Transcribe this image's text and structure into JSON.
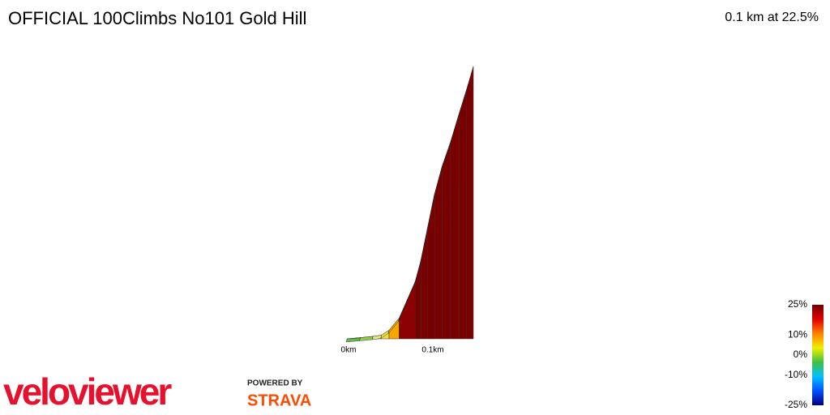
{
  "chart_data": {
    "type": "profile",
    "title": "OFFICIAL 100Climbs No101 Gold Hill",
    "subtitle": "0.1 km at 22.5%",
    "x": [
      0,
      0.016,
      0.031,
      0.041,
      0.05,
      0.062,
      0.081,
      0.088,
      0.096,
      0.104,
      0.113,
      0.123,
      0.133,
      0.142,
      0.15
    ],
    "values": [
      0,
      0.1,
      0.2,
      0.3,
      0.7,
      1.7,
      4.7,
      6.5,
      9.2,
      11.9,
      14.2,
      16.2,
      18.5,
      20.5,
      22.4
    ],
    "colors": [
      "#4caf2a",
      "#8fcf3a",
      "#e8e88a",
      "#f0e040",
      "#f5a800",
      "#8b0000",
      "#7a0000",
      "#7a0000",
      "#7a0000",
      "#7a0000",
      "#7a0000",
      "#7a0000",
      "#7a0000",
      "#7a0000"
    ],
    "xlim": [
      0,
      0.15
    ],
    "ylim": [
      0,
      22.4
    ],
    "xticks": [
      {
        "value": 0,
        "label": "0km"
      },
      {
        "value": 0.1,
        "label": "0.1km"
      }
    ],
    "colorbar": {
      "lim": [
        -25,
        25
      ],
      "ticks": [
        {
          "value": 25,
          "label": "25%"
        },
        {
          "value": 10,
          "label": "10%"
        },
        {
          "value": 0,
          "label": "0%"
        },
        {
          "value": -10,
          "label": "-10%"
        },
        {
          "value": -25,
          "label": "-25%"
        }
      ],
      "colors": [
        "#000080",
        "#0050ff",
        "#00c0ff",
        "#40c040",
        "#f0f000",
        "#ff8000",
        "#e00000",
        "#700000"
      ]
    },
    "branding": {
      "logo": "veloviewer",
      "powered": "POWERED BY",
      "strava": "STRAVA"
    }
  }
}
